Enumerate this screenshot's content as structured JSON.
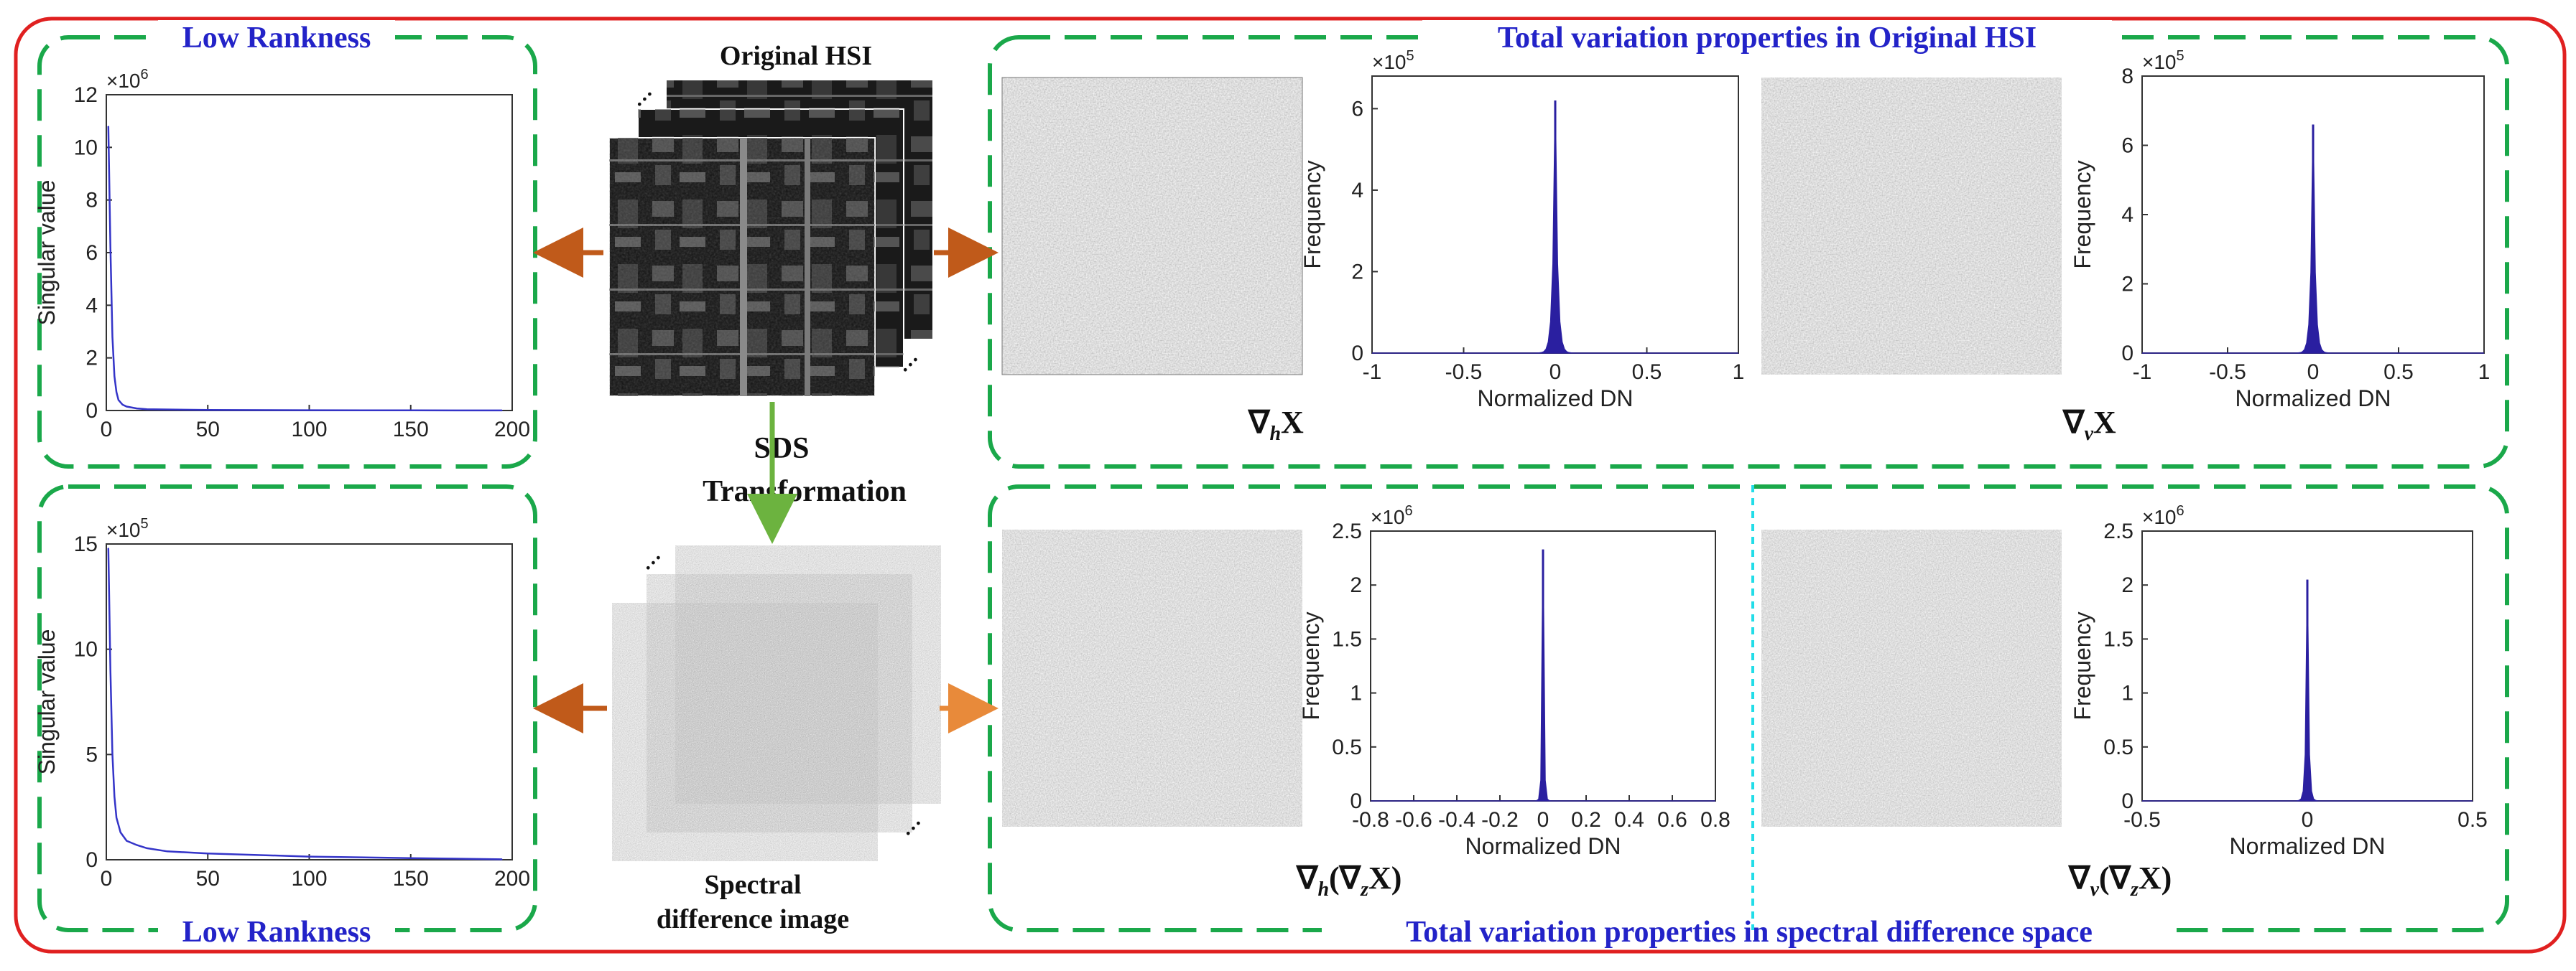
{
  "sections": {
    "low_rankness_top": "Low Rankness",
    "low_rankness_bottom": "Low Rankness",
    "tv_original": "Total variation properties in Original HSI",
    "tv_spectral": "Total variation properties in spectral difference space"
  },
  "center": {
    "original_hsi": "Original HSI",
    "sds_line1": "SDS",
    "sds_line2": "Transformation",
    "spectral_line1": "Spectral",
    "spectral_line2": "difference image"
  },
  "gradient_labels": {
    "h_x": "∇hX",
    "v_x": "∇vX",
    "h_zx": "∇h(∇zX)",
    "v_zx": "∇v(∇zX)"
  },
  "colors": {
    "outer_border": "#e02020",
    "dash_border": "#1aa84a",
    "title_blue": "#2323c8",
    "line_blue": "#3434c8",
    "hist_fill": "#2a1fa0",
    "arrow_brown": "#c05a1a",
    "arrow_orange": "#e88a3a",
    "arrow_green": "#6cb33f",
    "divider_cyan": "#22dde8"
  },
  "chart_data": [
    {
      "type": "line",
      "name": "singular-values-original",
      "ylabel": "Singular value",
      "xlabel": "",
      "y_exponent": "×10^6",
      "xlim": [
        0,
        200
      ],
      "ylim": [
        0,
        12
      ],
      "xticks": [
        0,
        50,
        100,
        150,
        200
      ],
      "yticks": [
        0,
        2,
        4,
        6,
        8,
        10,
        12
      ],
      "x": [
        1,
        2,
        3,
        4,
        5,
        6,
        8,
        10,
        15,
        20,
        50,
        100,
        150,
        195
      ],
      "y": [
        10.8,
        6.2,
        2.8,
        1.3,
        0.7,
        0.4,
        0.22,
        0.15,
        0.08,
        0.05,
        0.02,
        0.01,
        0.005,
        0.002
      ]
    },
    {
      "type": "line",
      "name": "singular-values-sds",
      "ylabel": "Singular value",
      "xlabel": "",
      "y_exponent": "×10^5",
      "xlim": [
        0,
        200
      ],
      "ylim": [
        0,
        15
      ],
      "xticks": [
        0,
        50,
        100,
        150,
        200
      ],
      "yticks": [
        0,
        5,
        10,
        15
      ],
      "x": [
        1,
        2,
        3,
        4,
        5,
        7,
        10,
        15,
        20,
        30,
        50,
        100,
        150,
        195
      ],
      "y": [
        14.8,
        9.0,
        5.0,
        3.0,
        2.0,
        1.3,
        0.9,
        0.7,
        0.55,
        0.4,
        0.3,
        0.15,
        0.08,
        0.02
      ]
    },
    {
      "type": "area",
      "name": "hist-grad-h-original",
      "xlabel": "Normalized DN",
      "ylabel": "Frequency",
      "y_exponent": "×10^5",
      "xlim": [
        -1,
        1
      ],
      "ylim": [
        0,
        6.8
      ],
      "xticks": [
        -1,
        -0.5,
        0,
        0.5,
        1
      ],
      "yticks": [
        0,
        2,
        4,
        6
      ],
      "peak": 6.2,
      "width": 0.012
    },
    {
      "type": "area",
      "name": "hist-grad-v-original",
      "xlabel": "Normalized DN",
      "ylabel": "Frequency",
      "y_exponent": "×10^5",
      "xlim": [
        -1,
        1
      ],
      "ylim": [
        0,
        8
      ],
      "xticks": [
        -1,
        -0.5,
        0,
        0.5,
        1
      ],
      "yticks": [
        0,
        2,
        4,
        6,
        8
      ],
      "peak": 6.6,
      "width": 0.012
    },
    {
      "type": "area",
      "name": "hist-grad-h-sds",
      "xlabel": "Normalized DN",
      "ylabel": "Frequency",
      "y_exponent": "×10^6",
      "xlim": [
        -0.8,
        0.8
      ],
      "ylim": [
        0,
        2.5
      ],
      "xticks": [
        -0.8,
        -0.6,
        -0.4,
        -0.2,
        0,
        0.2,
        0.4,
        0.6,
        0.8
      ],
      "yticks": [
        0,
        0.5,
        1,
        1.5,
        2,
        2.5
      ],
      "peak": 2.33,
      "width": 0.004
    },
    {
      "type": "area",
      "name": "hist-grad-v-sds",
      "xlabel": "Normalized DN",
      "ylabel": "Frequency",
      "y_exponent": "×10^6",
      "xlim": [
        -0.5,
        0.5
      ],
      "ylim": [
        0,
        2.5
      ],
      "xticks": [
        -0.5,
        0,
        0.5
      ],
      "yticks": [
        0,
        0.5,
        1,
        1.5,
        2,
        2.5
      ],
      "peak": 2.05,
      "width": 0.004
    }
  ]
}
